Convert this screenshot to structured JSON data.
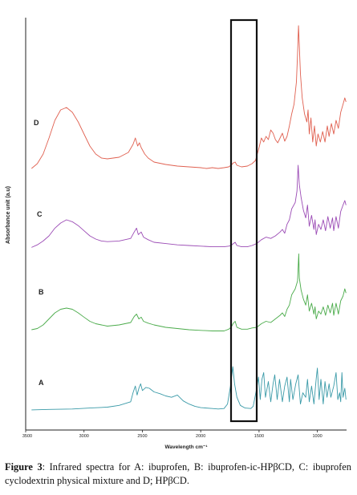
{
  "caption": {
    "label": "Figure 3",
    "text": ": Infrared spectra for A: ibuprofen, B: ibuprofen-ic-HPβCD, C: ibuprofen cyclodextrin physical mixture and D; HPβCD."
  },
  "chart_data": {
    "type": "line",
    "xlabel": "Wavelength cm⁻¹",
    "ylabel": "Absorbance unit (a.u)",
    "xlim": [
      3500,
      750
    ],
    "x_ticks": [
      3500,
      3000,
      2500,
      2000,
      1500,
      1000
    ],
    "x_tick_labels": [
      "3500",
      "3000",
      "2500",
      "2000",
      "1500",
      "1000"
    ],
    "highlight_box": {
      "x_range": [
        1740,
        1520
      ]
    },
    "colors": {
      "A": "#3a9aa8",
      "B": "#4aab4a",
      "C": "#9b4bb5",
      "D": "#e06050"
    },
    "series": [
      {
        "name": "A",
        "points": [
          [
            3450,
            0.02
          ],
          [
            3300,
            0.03
          ],
          [
            3100,
            0.04
          ],
          [
            2950,
            0.06
          ],
          [
            2800,
            0.08
          ],
          [
            2700,
            0.12
          ],
          [
            2600,
            0.2
          ],
          [
            2580,
            0.4
          ],
          [
            2560,
            0.55
          ],
          [
            2545,
            0.35
          ],
          [
            2530,
            0.5
          ],
          [
            2515,
            0.6
          ],
          [
            2500,
            0.45
          ],
          [
            2470,
            0.52
          ],
          [
            2440,
            0.5
          ],
          [
            2400,
            0.42
          ],
          [
            2350,
            0.38
          ],
          [
            2300,
            0.33
          ],
          [
            2250,
            0.3
          ],
          [
            2200,
            0.35
          ],
          [
            2150,
            0.22
          ],
          [
            2100,
            0.15
          ],
          [
            2050,
            0.1
          ],
          [
            2000,
            0.07
          ],
          [
            1900,
            0.05
          ],
          [
            1850,
            0.04
          ],
          [
            1800,
            0.05
          ],
          [
            1770,
            0.15
          ],
          [
            1745,
            0.55
          ],
          [
            1725,
            0.98
          ],
          [
            1710,
            0.6
          ],
          [
            1690,
            0.3
          ],
          [
            1660,
            0.12
          ],
          [
            1620,
            0.06
          ],
          [
            1570,
            0.05
          ],
          [
            1550,
            0.1
          ],
          [
            1520,
            0.5
          ],
          [
            1505,
            0.75
          ],
          [
            1490,
            0.25
          ],
          [
            1475,
            0.7
          ],
          [
            1460,
            0.85
          ],
          [
            1445,
            0.3
          ],
          [
            1420,
            0.65
          ],
          [
            1400,
            0.2
          ],
          [
            1380,
            0.6
          ],
          [
            1365,
            0.8
          ],
          [
            1345,
            0.25
          ],
          [
            1325,
            0.7
          ],
          [
            1300,
            0.2
          ],
          [
            1280,
            0.55
          ],
          [
            1260,
            0.75
          ],
          [
            1240,
            0.2
          ],
          [
            1230,
            0.7
          ],
          [
            1210,
            0.25
          ],
          [
            1185,
            0.6
          ],
          [
            1165,
            0.8
          ],
          [
            1145,
            0.15
          ],
          [
            1125,
            0.4
          ],
          [
            1100,
            0.3
          ],
          [
            1085,
            0.7
          ],
          [
            1070,
            0.2
          ],
          [
            1050,
            0.55
          ],
          [
            1030,
            0.15
          ],
          [
            1010,
            0.72
          ],
          [
            1000,
            0.95
          ],
          [
            985,
            0.25
          ],
          [
            970,
            0.7
          ],
          [
            950,
            0.15
          ],
          [
            935,
            0.65
          ],
          [
            918,
            0.3
          ],
          [
            900,
            0.6
          ],
          [
            885,
            0.3
          ],
          [
            860,
            0.55
          ],
          [
            840,
            0.85
          ],
          [
            825,
            0.25
          ],
          [
            810,
            0.4
          ],
          [
            800,
            0.2
          ],
          [
            790,
            0.85
          ],
          [
            780,
            0.3
          ],
          [
            765,
            0.5
          ],
          [
            755,
            0.25
          ]
        ]
      },
      {
        "name": "B",
        "points": [
          [
            3450,
            0.04
          ],
          [
            3400,
            0.06
          ],
          [
            3350,
            0.12
          ],
          [
            3300,
            0.22
          ],
          [
            3250,
            0.32
          ],
          [
            3200,
            0.38
          ],
          [
            3150,
            0.4
          ],
          [
            3100,
            0.38
          ],
          [
            3050,
            0.32
          ],
          [
            3000,
            0.25
          ],
          [
            2950,
            0.18
          ],
          [
            2900,
            0.14
          ],
          [
            2850,
            0.12
          ],
          [
            2800,
            0.1
          ],
          [
            2700,
            0.12
          ],
          [
            2600,
            0.16
          ],
          [
            2570,
            0.26
          ],
          [
            2550,
            0.3
          ],
          [
            2530,
            0.22
          ],
          [
            2510,
            0.25
          ],
          [
            2490,
            0.18
          ],
          [
            2450,
            0.15
          ],
          [
            2400,
            0.12
          ],
          [
            2300,
            0.08
          ],
          [
            2200,
            0.06
          ],
          [
            2100,
            0.04
          ],
          [
            2000,
            0.03
          ],
          [
            1900,
            0.02
          ],
          [
            1800,
            0.02
          ],
          [
            1760,
            0.05
          ],
          [
            1740,
            0.08
          ],
          [
            1720,
            0.15
          ],
          [
            1705,
            0.18
          ],
          [
            1690,
            0.08
          ],
          [
            1650,
            0.05
          ],
          [
            1600,
            0.05
          ],
          [
            1560,
            0.07
          ],
          [
            1520,
            0.08
          ],
          [
            1480,
            0.14
          ],
          [
            1440,
            0.18
          ],
          [
            1400,
            0.16
          ],
          [
            1360,
            0.22
          ],
          [
            1320,
            0.28
          ],
          [
            1300,
            0.32
          ],
          [
            1280,
            0.26
          ],
          [
            1260,
            0.38
          ],
          [
            1240,
            0.45
          ],
          [
            1220,
            0.62
          ],
          [
            1190,
            0.72
          ],
          [
            1170,
            0.85
          ],
          [
            1160,
            1.3
          ],
          [
            1155,
            0.9
          ],
          [
            1140,
            0.7
          ],
          [
            1120,
            0.55
          ],
          [
            1100,
            0.45
          ],
          [
            1085,
            0.62
          ],
          [
            1070,
            0.35
          ],
          [
            1050,
            0.48
          ],
          [
            1030,
            0.3
          ],
          [
            1020,
            0.42
          ],
          [
            1010,
            0.22
          ],
          [
            990,
            0.35
          ],
          [
            970,
            0.3
          ],
          [
            950,
            0.42
          ],
          [
            930,
            0.28
          ],
          [
            910,
            0.45
          ],
          [
            890,
            0.32
          ],
          [
            870,
            0.48
          ],
          [
            860,
            0.28
          ],
          [
            840,
            0.48
          ],
          [
            820,
            0.3
          ],
          [
            800,
            0.52
          ],
          [
            780,
            0.6
          ],
          [
            765,
            0.72
          ],
          [
            755,
            0.65
          ]
        ]
      },
      {
        "name": "C",
        "points": [
          [
            3450,
            0.02
          ],
          [
            3400,
            0.06
          ],
          [
            3350,
            0.12
          ],
          [
            3300,
            0.2
          ],
          [
            3250,
            0.32
          ],
          [
            3200,
            0.4
          ],
          [
            3150,
            0.45
          ],
          [
            3100,
            0.42
          ],
          [
            3050,
            0.36
          ],
          [
            3000,
            0.28
          ],
          [
            2950,
            0.2
          ],
          [
            2900,
            0.15
          ],
          [
            2850,
            0.12
          ],
          [
            2800,
            0.11
          ],
          [
            2700,
            0.12
          ],
          [
            2600,
            0.16
          ],
          [
            2570,
            0.26
          ],
          [
            2550,
            0.32
          ],
          [
            2535,
            0.22
          ],
          [
            2510,
            0.26
          ],
          [
            2490,
            0.18
          ],
          [
            2450,
            0.14
          ],
          [
            2400,
            0.1
          ],
          [
            2300,
            0.08
          ],
          [
            2200,
            0.06
          ],
          [
            2100,
            0.05
          ],
          [
            2000,
            0.04
          ],
          [
            1900,
            0.03
          ],
          [
            1800,
            0.03
          ],
          [
            1760,
            0.04
          ],
          [
            1740,
            0.05
          ],
          [
            1720,
            0.08
          ],
          [
            1705,
            0.1
          ],
          [
            1690,
            0.05
          ],
          [
            1650,
            0.03
          ],
          [
            1600,
            0.03
          ],
          [
            1560,
            0.05
          ],
          [
            1520,
            0.08
          ],
          [
            1480,
            0.14
          ],
          [
            1440,
            0.18
          ],
          [
            1400,
            0.16
          ],
          [
            1360,
            0.2
          ],
          [
            1320,
            0.26
          ],
          [
            1300,
            0.3
          ],
          [
            1280,
            0.24
          ],
          [
            1260,
            0.38
          ],
          [
            1240,
            0.45
          ],
          [
            1220,
            0.62
          ],
          [
            1190,
            0.72
          ],
          [
            1175,
            0.9
          ],
          [
            1165,
            1.3
          ],
          [
            1155,
            1.0
          ],
          [
            1140,
            0.8
          ],
          [
            1120,
            0.6
          ],
          [
            1100,
            0.48
          ],
          [
            1085,
            0.68
          ],
          [
            1070,
            0.35
          ],
          [
            1050,
            0.52
          ],
          [
            1030,
            0.3
          ],
          [
            1020,
            0.45
          ],
          [
            1010,
            0.22
          ],
          [
            990,
            0.38
          ],
          [
            970,
            0.3
          ],
          [
            950,
            0.45
          ],
          [
            930,
            0.28
          ],
          [
            910,
            0.5
          ],
          [
            890,
            0.32
          ],
          [
            870,
            0.48
          ],
          [
            860,
            0.28
          ],
          [
            840,
            0.5
          ],
          [
            820,
            0.32
          ],
          [
            800,
            0.58
          ],
          [
            780,
            0.68
          ],
          [
            765,
            0.75
          ],
          [
            755,
            0.68
          ]
        ]
      },
      {
        "name": "D",
        "points": [
          [
            3450,
            0.02
          ],
          [
            3400,
            0.08
          ],
          [
            3350,
            0.2
          ],
          [
            3300,
            0.4
          ],
          [
            3250,
            0.62
          ],
          [
            3200,
            0.75
          ],
          [
            3150,
            0.78
          ],
          [
            3100,
            0.72
          ],
          [
            3050,
            0.6
          ],
          [
            3000,
            0.45
          ],
          [
            2950,
            0.3
          ],
          [
            2900,
            0.2
          ],
          [
            2850,
            0.15
          ],
          [
            2800,
            0.14
          ],
          [
            2700,
            0.16
          ],
          [
            2620,
            0.22
          ],
          [
            2580,
            0.32
          ],
          [
            2560,
            0.4
          ],
          [
            2540,
            0.3
          ],
          [
            2525,
            0.34
          ],
          [
            2510,
            0.28
          ],
          [
            2480,
            0.2
          ],
          [
            2450,
            0.15
          ],
          [
            2400,
            0.1
          ],
          [
            2300,
            0.07
          ],
          [
            2200,
            0.05
          ],
          [
            2100,
            0.04
          ],
          [
            2000,
            0.03
          ],
          [
            1950,
            0.02
          ],
          [
            1900,
            0.03
          ],
          [
            1850,
            0.02
          ],
          [
            1800,
            0.03
          ],
          [
            1760,
            0.04
          ],
          [
            1740,
            0.06
          ],
          [
            1720,
            0.09
          ],
          [
            1705,
            0.1
          ],
          [
            1690,
            0.06
          ],
          [
            1650,
            0.04
          ],
          [
            1600,
            0.05
          ],
          [
            1560,
            0.08
          ],
          [
            1530,
            0.12
          ],
          [
            1500,
            0.28
          ],
          [
            1480,
            0.4
          ],
          [
            1460,
            0.35
          ],
          [
            1440,
            0.42
          ],
          [
            1420,
            0.38
          ],
          [
            1400,
            0.5
          ],
          [
            1380,
            0.46
          ],
          [
            1360,
            0.38
          ],
          [
            1340,
            0.34
          ],
          [
            1320,
            0.4
          ],
          [
            1300,
            0.46
          ],
          [
            1280,
            0.36
          ],
          [
            1260,
            0.42
          ],
          [
            1240,
            0.55
          ],
          [
            1220,
            0.7
          ],
          [
            1200,
            0.82
          ],
          [
            1180,
            1.1
          ],
          [
            1170,
            1.45
          ],
          [
            1162,
            1.8
          ],
          [
            1155,
            1.55
          ],
          [
            1145,
            1.2
          ],
          [
            1130,
            0.9
          ],
          [
            1110,
            0.7
          ],
          [
            1090,
            0.6
          ],
          [
            1080,
            0.75
          ],
          [
            1070,
            0.45
          ],
          [
            1055,
            0.65
          ],
          [
            1040,
            0.35
          ],
          [
            1025,
            0.55
          ],
          [
            1010,
            0.3
          ],
          [
            995,
            0.45
          ],
          [
            975,
            0.35
          ],
          [
            955,
            0.48
          ],
          [
            935,
            0.35
          ],
          [
            915,
            0.55
          ],
          [
            900,
            0.42
          ],
          [
            880,
            0.58
          ],
          [
            860,
            0.45
          ],
          [
            840,
            0.62
          ],
          [
            820,
            0.52
          ],
          [
            800,
            0.72
          ],
          [
            780,
            0.82
          ],
          [
            765,
            0.9
          ],
          [
            755,
            0.85
          ]
        ]
      }
    ]
  }
}
